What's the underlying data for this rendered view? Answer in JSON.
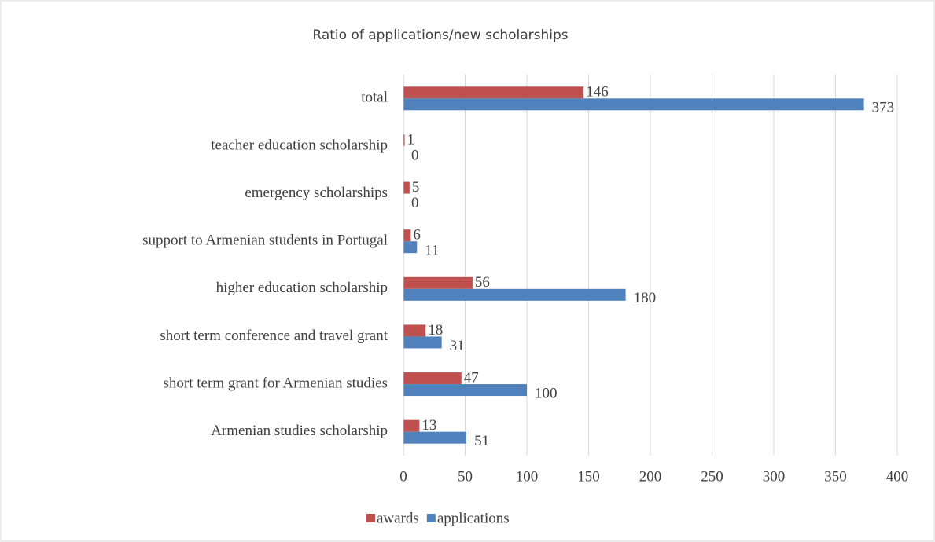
{
  "chart_data": {
    "type": "bar",
    "orientation": "horizontal",
    "title": "Ratio of applications/new scholarships",
    "categories": [
      "total",
      "teacher education scholarship",
      "emergency scholarships",
      "support to Armenian students in Portugal",
      "higher education scholarship",
      "short term conference and travel grant",
      "short term grant for Armenian studies",
      "Armenian studies scholarship"
    ],
    "series": [
      {
        "name": "awards",
        "color": "#c0504d",
        "values": [
          146,
          1,
          5,
          6,
          56,
          18,
          47,
          13
        ]
      },
      {
        "name": "applications",
        "color": "#4f81bd",
        "values": [
          373,
          0,
          0,
          11,
          180,
          31,
          100,
          51
        ]
      }
    ],
    "xlim": [
      0,
      400
    ],
    "xticks": [
      0,
      50,
      100,
      150,
      200,
      250,
      300,
      350,
      400
    ],
    "grid": true,
    "legend": "bottom"
  }
}
